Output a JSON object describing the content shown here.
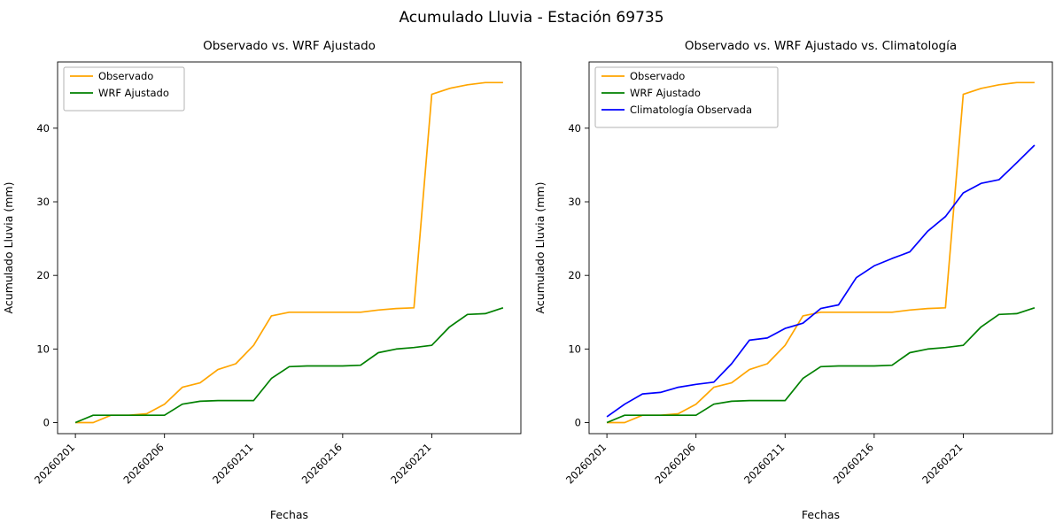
{
  "figure": {
    "title": "Acumulado Lluvia - Estación 69735",
    "background": "#ffffff"
  },
  "chart_data": [
    {
      "type": "line",
      "title": "Observado vs. WRF Ajustado",
      "xlabel": "Fechas",
      "ylabel": "Acumulado Lluvia (mm)",
      "legend_position": "upper left",
      "grid": false,
      "ylim": [
        -1.5,
        49
      ],
      "y_ticks": [
        0,
        10,
        20,
        30,
        40
      ],
      "x_tick_positions": [
        0,
        5,
        10,
        15,
        20
      ],
      "x_tick_labels": [
        "20260201",
        "20260206",
        "20260211",
        "20260216",
        "20260221"
      ],
      "x": [
        "20260201",
        "20260202",
        "20260203",
        "20260204",
        "20260205",
        "20260206",
        "20260207",
        "20260208",
        "20260209",
        "20260210",
        "20260211",
        "20260212",
        "20260213",
        "20260214",
        "20260215",
        "20260216",
        "20260217",
        "20260218",
        "20260219",
        "20260220",
        "20260221",
        "20260222",
        "20260223",
        "20260224",
        "20260225"
      ],
      "series": [
        {
          "name": "Observado",
          "color": "#FFA500",
          "values": [
            0,
            0,
            1,
            1,
            1.2,
            2.5,
            4.8,
            5.4,
            7.2,
            8,
            10.5,
            14.5,
            15,
            15,
            15,
            15,
            15,
            15.3,
            15.5,
            15.6,
            44.6,
            45.4,
            45.9,
            46.2,
            46.2
          ]
        },
        {
          "name": "WRF Ajustado",
          "color": "#008000",
          "values": [
            0,
            1,
            1,
            1,
            1,
            1,
            2.5,
            2.9,
            3,
            3,
            3,
            6,
            7.6,
            7.7,
            7.7,
            7.7,
            7.8,
            9.5,
            10,
            10.2,
            10.5,
            13,
            14.7,
            14.8,
            15.6
          ]
        }
      ]
    },
    {
      "type": "line",
      "title": "Observado vs. WRF Ajustado vs. Climatología",
      "xlabel": "Fechas",
      "ylabel": "Acumulado Lluvia (mm)",
      "legend_position": "upper left",
      "grid": false,
      "ylim": [
        -1.5,
        49
      ],
      "y_ticks": [
        0,
        10,
        20,
        30,
        40
      ],
      "x_tick_positions": [
        0,
        5,
        10,
        15,
        20
      ],
      "x_tick_labels": [
        "20260201",
        "20260206",
        "20260211",
        "20260216",
        "20260221"
      ],
      "x": [
        "20260201",
        "20260202",
        "20260203",
        "20260204",
        "20260205",
        "20260206",
        "20260207",
        "20260208",
        "20260209",
        "20260210",
        "20260211",
        "20260212",
        "20260213",
        "20260214",
        "20260215",
        "20260216",
        "20260217",
        "20260218",
        "20260219",
        "20260220",
        "20260221",
        "20260222",
        "20260223",
        "20260224",
        "20260225"
      ],
      "series": [
        {
          "name": "Observado",
          "color": "#FFA500",
          "values": [
            0,
            0,
            1,
            1,
            1.2,
            2.5,
            4.8,
            5.4,
            7.2,
            8,
            10.5,
            14.5,
            15,
            15,
            15,
            15,
            15,
            15.3,
            15.5,
            15.6,
            44.6,
            45.4,
            45.9,
            46.2,
            46.2
          ]
        },
        {
          "name": "WRF Ajustado",
          "color": "#008000",
          "values": [
            0,
            1,
            1,
            1,
            1,
            1,
            2.5,
            2.9,
            3,
            3,
            3,
            6,
            7.6,
            7.7,
            7.7,
            7.7,
            7.8,
            9.5,
            10,
            10.2,
            10.5,
            13,
            14.7,
            14.8,
            15.6
          ]
        },
        {
          "name": "Climatología Observada",
          "color": "#0000FF",
          "values": [
            0.8,
            2.5,
            3.9,
            4.1,
            4.8,
            5.2,
            5.5,
            8,
            11.2,
            11.5,
            12.8,
            13.5,
            15.5,
            16,
            19.7,
            21.3,
            22.3,
            23.2,
            26,
            28,
            31.2,
            32.5,
            33,
            35.3,
            37.7
          ]
        }
      ]
    }
  ]
}
